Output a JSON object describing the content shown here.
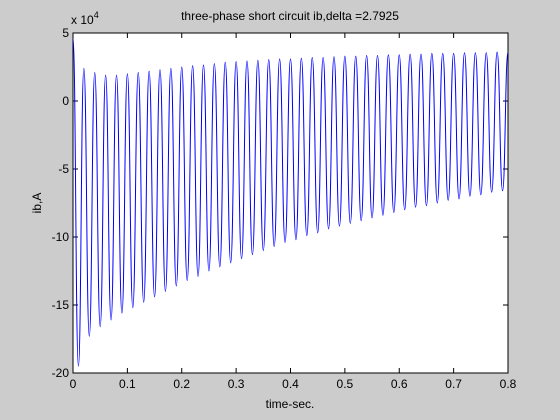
{
  "chart_data": {
    "type": "line",
    "title": "three-phase short circuit ib,delta =2.7925",
    "xlabel": "time-sec.",
    "ylabel": "ib,A",
    "y_multiplier": {
      "base": "x 10",
      "exponent": "4"
    },
    "xlim": [
      0,
      0.8
    ],
    "ylim": [
      -20,
      5
    ],
    "xticks": [
      0,
      0.1,
      0.2,
      0.3,
      0.4,
      0.5,
      0.6,
      0.7,
      0.8
    ],
    "yticks": [
      -20,
      -15,
      -10,
      -5,
      0,
      5
    ],
    "grid": false,
    "x": [
      0,
      0.01,
      0.02,
      0.03,
      0.04,
      0.05,
      0.06,
      0.07,
      0.08,
      0.09,
      0.1,
      0.11,
      0.12,
      0.13,
      0.14,
      0.15,
      0.16,
      0.17,
      0.18,
      0.19,
      0.2,
      0.21,
      0.22,
      0.23,
      0.24,
      0.25,
      0.26,
      0.27,
      0.28,
      0.29,
      0.3,
      0.31,
      0.32,
      0.33,
      0.34,
      0.35,
      0.36,
      0.37,
      0.38,
      0.39,
      0.4,
      0.41,
      0.42,
      0.43,
      0.44,
      0.45,
      0.46,
      0.47,
      0.48,
      0.49,
      0.5,
      0.51,
      0.52,
      0.53,
      0.54,
      0.55,
      0.56,
      0.57,
      0.58,
      0.59,
      0.6,
      0.61,
      0.62,
      0.63,
      0.64,
      0.65,
      0.66,
      0.67,
      0.68,
      0.69,
      0.7,
      0.71,
      0.72,
      0.73,
      0.74,
      0.75,
      0.76,
      0.77,
      0.78,
      0.79,
      0.8
    ],
    "series": [
      {
        "name": "ib",
        "color": "#0000ff",
        "values": [
          4.6,
          -19.5,
          2.4,
          -17.3,
          2.1,
          -16.6,
          1.9,
          -16.1,
          1.9,
          -15.6,
          2.0,
          -15.2,
          2.1,
          -14.8,
          2.2,
          -14.4,
          2.3,
          -14.0,
          2.4,
          -13.6,
          2.5,
          -13.2,
          2.6,
          -12.9,
          2.65,
          -12.5,
          2.75,
          -12.2,
          2.85,
          -11.9,
          2.9,
          -11.6,
          2.95,
          -11.3,
          3.0,
          -11.0,
          3.05,
          -10.7,
          3.1,
          -10.4,
          3.1,
          -10.2,
          3.15,
          -9.9,
          3.2,
          -9.7,
          3.2,
          -9.4,
          3.25,
          -9.2,
          3.3,
          -9.0,
          3.3,
          -8.8,
          3.35,
          -8.6,
          3.35,
          -8.4,
          3.4,
          -8.2,
          3.4,
          -8.0,
          3.45,
          -7.8,
          3.45,
          -7.7,
          3.5,
          -7.5,
          3.5,
          -7.3,
          3.5,
          -7.2,
          3.55,
          -7.0,
          3.55,
          -6.9,
          3.55,
          -6.7,
          3.6,
          -6.6,
          3.6
        ]
      }
    ]
  }
}
